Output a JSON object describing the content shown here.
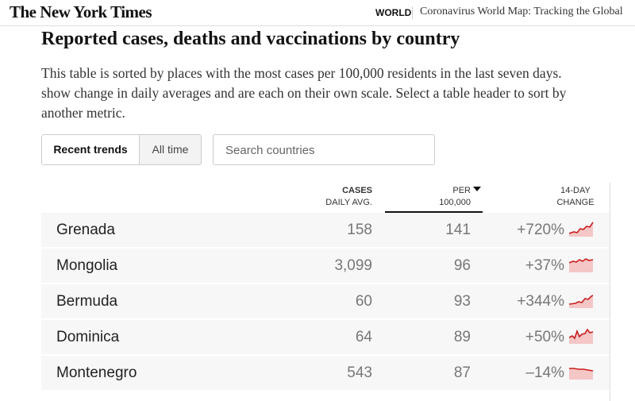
{
  "header": {
    "logo": "The New York Times",
    "section": "WORLD",
    "headline": "Coronavirus World Map: Tracking the Global"
  },
  "title": "Reported cases, deaths and vaccinations by country",
  "description": [
    "This table is sorted by places with the most cases per 100,000 residents in the last seven days.",
    "show change in daily averages and are each on their own scale. Select a table header to sort by",
    "another metric."
  ],
  "tabs": [
    "Recent trends",
    "All time"
  ],
  "search_placeholder": "Search countries",
  "table": {
    "columns": [
      [
        "CASES",
        "DAILY AVG."
      ],
      [
        "PER",
        "100,000"
      ],
      [
        "14-DAY",
        "CHANGE"
      ]
    ],
    "rows": [
      [
        "Grenada",
        "158",
        "141",
        "+720%"
      ],
      [
        "Mongolia",
        "3,099",
        "96",
        "+37%"
      ],
      [
        "Bermuda",
        "60",
        "93",
        "+344%"
      ],
      [
        "Dominica",
        "64",
        "89",
        "+50%"
      ],
      [
        "Montenegro",
        "543",
        "87",
        "–14%"
      ]
    ]
  }
}
